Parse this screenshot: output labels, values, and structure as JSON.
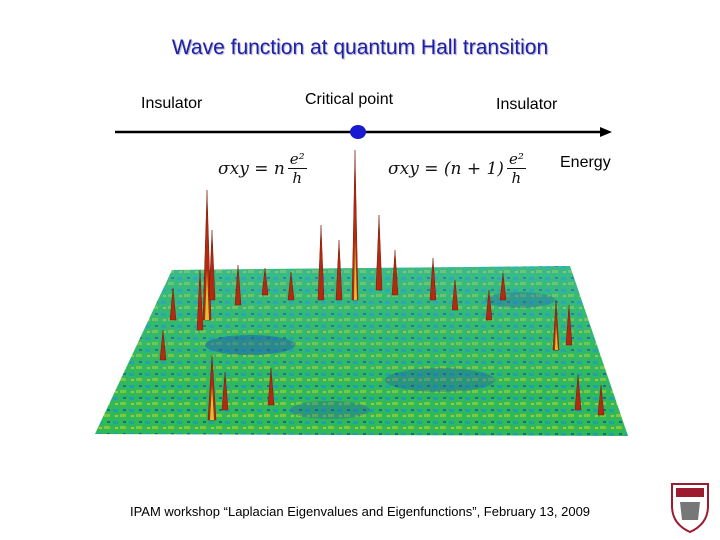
{
  "slide": {
    "title": "Wave function at quantum Hall transition",
    "left_label": "Insulator",
    "center_label": "Critical point",
    "right_label": "Insulator",
    "axis_label": "Energy",
    "formula_left": {
      "lhs": "σxy = n",
      "num": "e²",
      "den": "h"
    },
    "formula_right": {
      "lhs": "σxy = (n + 1)",
      "num": "e²",
      "den": "h"
    },
    "footer": "IPAM workshop “Laplacian Eigenvalues and Eigenfunctions”, February 13, 2009"
  },
  "colors": {
    "title": "#1f1fa8",
    "axis": "#000000",
    "critical_dot": "#1a1ad0",
    "surface": "#2fbf5a",
    "peak": "#b22a10",
    "logo": "#9c1b2e"
  },
  "icons": {
    "logo": "crest-icon"
  }
}
